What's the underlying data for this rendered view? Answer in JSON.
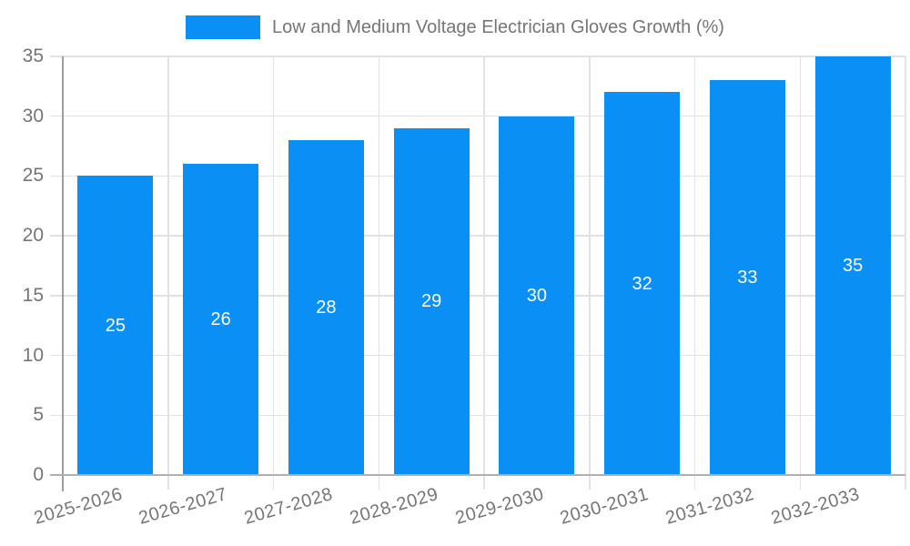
{
  "chart_data": {
    "type": "bar",
    "title": "Low and Medium Voltage Electrician Gloves Growth (%)",
    "categories": [
      "2025-2026",
      "2026-2027",
      "2027-2028",
      "2028-2029",
      "2029-2030",
      "2030-2031",
      "2031-2032",
      "2032-2033"
    ],
    "values": [
      25,
      26,
      28,
      29,
      30,
      32,
      33,
      35
    ],
    "xlabel": "",
    "ylabel": "",
    "ylim": [
      0,
      35
    ],
    "yticks": [
      0,
      5,
      10,
      15,
      20,
      25,
      30,
      35
    ],
    "grid": true,
    "legend_position": "top",
    "bar_value_labels": [
      25,
      26,
      28,
      29,
      30,
      32,
      33,
      35
    ],
    "x_tick_rotation_deg": -16
  },
  "colors": {
    "bar": "#0a8ff5",
    "grid": "#e2e2e2",
    "axis": "#9e9e9e",
    "baseline": "#b0b0b0",
    "text": "#757575",
    "value_label": "#ffffff",
    "background": "#ffffff"
  }
}
